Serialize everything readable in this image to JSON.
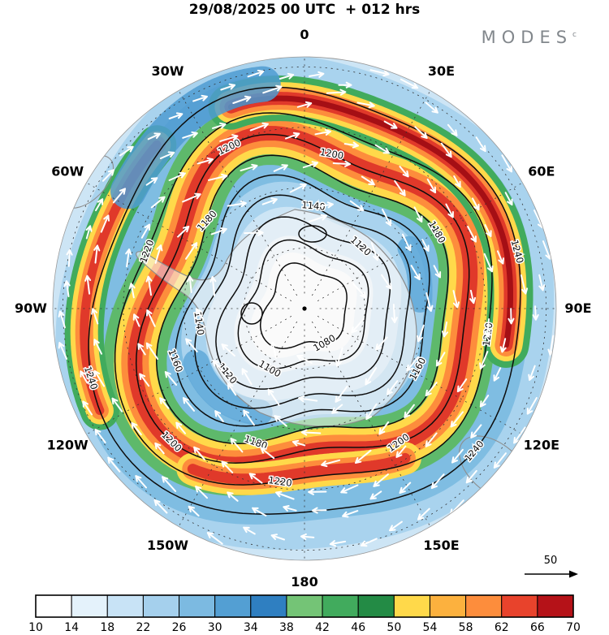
{
  "header": {
    "title": "29/08/2025 00 UTC  + 012 hrs",
    "logo_text": "MODES",
    "logo_mark": "c"
  },
  "chart_data": {
    "type": "heatmap",
    "projection": "polar-stereographic",
    "title": "29/08/2025 00 UTC + 012 hrs",
    "shaded_field": "wind speed (color shading)",
    "colorbar": {
      "tick_labels": [
        "10",
        "14",
        "18",
        "22",
        "26",
        "30",
        "34",
        "38",
        "42",
        "46",
        "50",
        "54",
        "58",
        "62",
        "66",
        "70"
      ],
      "cell_colors": [
        "#ffffff",
        "#e4f2fb",
        "#c8e3f6",
        "#a5d0ed",
        "#7cbae1",
        "#539fd3",
        "#2f7fc1",
        "#74c476",
        "#41ab5d",
        "#238b45",
        "#ffd94a",
        "#fcb13e",
        "#fd8d3c",
        "#e8432c",
        "#b51218"
      ]
    },
    "contours": {
      "field": "geopotential height",
      "interval": 20,
      "levels": [
        1080,
        1100,
        1120,
        1140,
        1160,
        1180,
        1200,
        1220,
        1240
      ],
      "rings": [
        {
          "value": "1080",
          "r": 0.165,
          "amp": 0.35,
          "label_angles": [
            150
          ]
        },
        {
          "value": "1100",
          "r": 0.25,
          "amp": 0.5,
          "label_angles": [
            210
          ]
        },
        {
          "value": "1120",
          "r": 0.335,
          "amp": 0.65,
          "label_angles": [
            42,
            230
          ]
        },
        {
          "value": "1140",
          "r": 0.415,
          "amp": 0.8,
          "label_angles": [
            5,
            262
          ]
        },
        {
          "value": "1160",
          "r": 0.49,
          "amp": 0.92,
          "label_angles": [
            118,
            248
          ]
        },
        {
          "value": "1180",
          "r": 0.565,
          "amp": 1.0,
          "label_angles": [
            60,
            200,
            312
          ]
        },
        {
          "value": "1200",
          "r": 0.65,
          "amp": 1.0,
          "label_angles": [
            10,
            145,
            225,
            335
          ]
        },
        {
          "value": "1220",
          "r": 0.745,
          "amp": 0.85,
          "label_angles": [
            98,
            188,
            290
          ]
        },
        {
          "value": "1240",
          "r": 0.86,
          "amp": 0.6,
          "label_angles": [
            75,
            130,
            252
          ]
        }
      ]
    },
    "meridians": {
      "step_deg": 30,
      "labels": [
        "0",
        "30E",
        "60E",
        "90E",
        "120E",
        "150E",
        "180",
        "150W",
        "120W",
        "90W",
        "60W",
        "30W"
      ]
    },
    "wind_vectors": {
      "color": "#ffffff",
      "reference_label": "50"
    }
  }
}
